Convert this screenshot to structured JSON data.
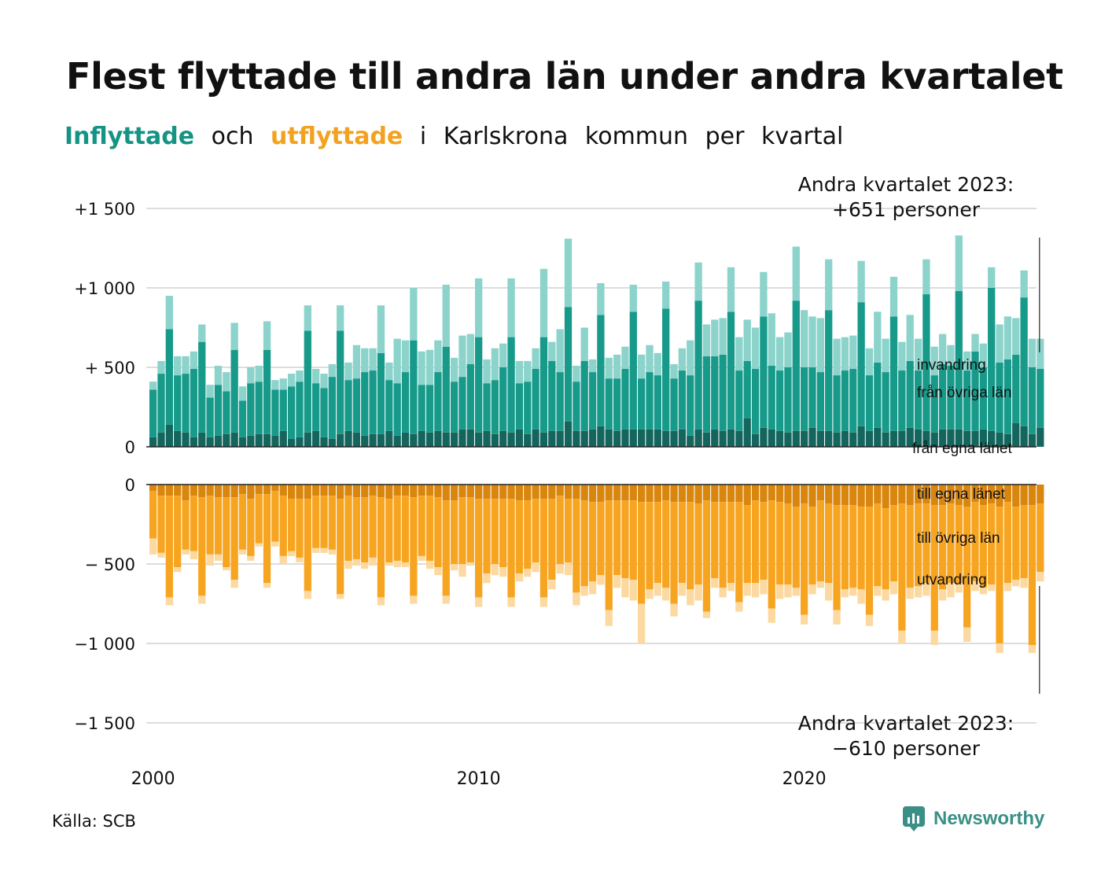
{
  "title": "Flest flyttade till andra län under andra kvartalet",
  "subtitle": {
    "word1": "Inflyttade",
    "word2": "och",
    "word3": "utflyttade",
    "word4": "i",
    "word5": "Karlskrona",
    "word6": "kommun",
    "word7": "per",
    "word8": "kvartal"
  },
  "source": "Källa: SCB",
  "logo_text": "Newsworthy",
  "colors": {
    "in_local": "#14655d",
    "in_other": "#179a8a",
    "in_abroad": "#8bd3cb",
    "out_local": "#d9860f",
    "out_other": "#f7a521",
    "out_abroad": "#fcd9a0",
    "grid": "#dddddd",
    "logo": "#3a8f86"
  },
  "chart_data": {
    "type": "bar",
    "stacked": true,
    "x_start": "2000 Q1",
    "x_ticks": [
      "2000",
      "2010",
      "2020"
    ],
    "y_ticks": [
      "+1 500",
      "+1 000",
      "+  500",
      "0",
      "0",
      "−  500",
      "−1 000",
      "−1 500"
    ],
    "in_ylim": [
      0,
      1500
    ],
    "out_ylim": [
      -1500,
      0
    ],
    "in_series_labels": [
      "invandring",
      "från övriga län",
      "från egna länet"
    ],
    "out_series_labels": [
      "till egna länet",
      "till övriga län",
      "utvandring"
    ],
    "annotation_in": {
      "line1": "Andra kvartalet 2023:",
      "line2": "+651 personer"
    },
    "annotation_out": {
      "line1": "Andra kvartalet 2023:",
      "line2": "−610 personer"
    },
    "inflow": {
      "from_own_county": [
        60,
        90,
        140,
        100,
        90,
        60,
        90,
        60,
        70,
        80,
        90,
        60,
        70,
        80,
        80,
        70,
        100,
        50,
        60,
        90,
        100,
        60,
        50,
        80,
        100,
        90,
        70,
        80,
        80,
        100,
        70,
        90,
        80,
        100,
        90,
        100,
        90,
        90,
        110,
        110,
        90,
        100,
        80,
        100,
        90,
        110,
        80,
        110,
        90,
        100,
        100,
        160,
        100,
        100,
        110,
        130,
        110,
        100,
        110,
        110,
        110,
        110,
        110,
        100,
        100,
        110,
        70,
        110,
        90,
        110,
        100,
        110,
        100,
        180,
        80,
        120,
        110,
        100,
        90,
        100,
        100,
        120,
        100,
        100,
        90,
        100,
        90,
        130,
        100,
        120,
        90,
        100,
        100,
        120,
        110,
        100,
        90,
        110,
        110,
        110,
        100,
        100,
        110,
        100,
        90,
        80,
        150,
        130,
        80,
        120
      ],
      "from_other_counties": [
        300,
        370,
        600,
        350,
        370,
        430,
        570,
        250,
        320,
        270,
        520,
        230,
        330,
        330,
        530,
        290,
        260,
        330,
        350,
        640,
        300,
        310,
        390,
        650,
        320,
        340,
        400,
        400,
        510,
        320,
        330,
        380,
        590,
        290,
        300,
        370,
        540,
        320,
        330,
        410,
        600,
        300,
        340,
        400,
        600,
        290,
        330,
        380,
        600,
        440,
        370,
        720,
        310,
        440,
        360,
        700,
        320,
        330,
        380,
        740,
        320,
        360,
        340,
        770,
        330,
        370,
        380,
        810,
        480,
        460,
        480,
        740,
        380,
        360,
        410,
        700,
        400,
        380,
        410,
        820,
        400,
        380,
        370,
        760,
        360,
        380,
        400,
        780,
        350,
        410,
        380,
        720,
        380,
        420,
        370,
        860,
        360,
        410,
        400,
        870,
        380,
        500,
        390,
        900,
        440,
        470,
        430,
        810,
        420,
        370
      ],
      "abroad": [
        50,
        80,
        210,
        120,
        110,
        110,
        110,
        80,
        120,
        120,
        170,
        90,
        100,
        100,
        180,
        60,
        70,
        80,
        70,
        160,
        90,
        90,
        80,
        160,
        110,
        210,
        150,
        140,
        300,
        110,
        280,
        200,
        330,
        210,
        220,
        200,
        390,
        150,
        260,
        190,
        370,
        150,
        200,
        150,
        370,
        140,
        130,
        130,
        430,
        120,
        270,
        430,
        100,
        210,
        80,
        200,
        130,
        150,
        140,
        170,
        150,
        170,
        140,
        170,
        90,
        140,
        220,
        240,
        200,
        230,
        230,
        280,
        210,
        260,
        260,
        280,
        330,
        210,
        220,
        340,
        360,
        320,
        340,
        320,
        230,
        210,
        210,
        260,
        170,
        320,
        210,
        250,
        180,
        290,
        200,
        220,
        180,
        190,
        130,
        350,
        120,
        110,
        150,
        130,
        240,
        270,
        230,
        170,
        180,
        190
      ]
    },
    "outflow": {
      "to_own_county": [
        -40,
        -70,
        -70,
        -70,
        -100,
        -70,
        -80,
        -70,
        -80,
        -80,
        -80,
        -60,
        -90,
        -60,
        -60,
        -40,
        -70,
        -90,
        -90,
        -90,
        -70,
        -70,
        -70,
        -90,
        -70,
        -80,
        -80,
        -70,
        -80,
        -90,
        -70,
        -70,
        -80,
        -70,
        -70,
        -80,
        -100,
        -100,
        -80,
        -80,
        -90,
        -90,
        -90,
        -90,
        -90,
        -100,
        -100,
        -90,
        -90,
        -90,
        -70,
        -90,
        -90,
        -100,
        -110,
        -110,
        -100,
        -100,
        -100,
        -100,
        -110,
        -110,
        -110,
        -100,
        -110,
        -110,
        -110,
        -120,
        -100,
        -110,
        -110,
        -110,
        -110,
        -130,
        -100,
        -110,
        -100,
        -110,
        -120,
        -140,
        -120,
        -140,
        -100,
        -120,
        -130,
        -130,
        -130,
        -140,
        -140,
        -120,
        -150,
        -130,
        -120,
        -130,
        -120,
        -120,
        -130,
        -130,
        -120,
        -130,
        -140,
        -110,
        -130,
        -120,
        -140,
        -110,
        -140,
        -130,
        -130,
        -120
      ],
      "to_other_counties": [
        -300,
        -360,
        -640,
        -450,
        -310,
        -350,
        -620,
        -370,
        -360,
        -440,
        -520,
        -350,
        -360,
        -310,
        -560,
        -320,
        -380,
        -330,
        -370,
        -580,
        -330,
        -330,
        -340,
        -600,
        -410,
        -390,
        -410,
        -390,
        -630,
        -400,
        -410,
        -420,
        -620,
        -380,
        -410,
        -440,
        -600,
        -400,
        -420,
        -410,
        -620,
        -470,
        -410,
        -430,
        -620,
        -460,
        -430,
        -400,
        -620,
        -510,
        -430,
        -400,
        -590,
        -540,
        -500,
        -460,
        -690,
        -470,
        -490,
        -500,
        -640,
        -550,
        -510,
        -550,
        -640,
        -510,
        -550,
        -510,
        -700,
        -480,
        -540,
        -510,
        -630,
        -490,
        -520,
        -490,
        -680,
        -520,
        -510,
        -510,
        -700,
        -490,
        -510,
        -500,
        -660,
        -530,
        -520,
        -520,
        -680,
        -520,
        -510,
        -480,
        -800,
        -520,
        -520,
        -500,
        -790,
        -530,
        -500,
        -490,
        -760,
        -500,
        -520,
        -510,
        -860,
        -510,
        -460,
        -460,
        -880,
        -430
      ],
      "abroad": [
        -100,
        -30,
        -50,
        -30,
        -30,
        -50,
        -50,
        -70,
        -40,
        -20,
        -50,
        -30,
        -30,
        -20,
        -30,
        -30,
        -50,
        -30,
        -30,
        -50,
        -30,
        -30,
        -30,
        -30,
        -50,
        -40,
        -40,
        -50,
        -50,
        -20,
        -40,
        -30,
        -50,
        -30,
        -50,
        -50,
        -50,
        -40,
        -80,
        -20,
        -60,
        -60,
        -70,
        -60,
        -60,
        -50,
        -50,
        -60,
        -60,
        -60,
        -60,
        -80,
        -80,
        -60,
        -80,
        -60,
        -100,
        -80,
        -120,
        -130,
        -250,
        -60,
        -80,
        -80,
        -80,
        -80,
        -100,
        -100,
        -40,
        -60,
        -60,
        -50,
        -60,
        -80,
        -90,
        -90,
        -90,
        -90,
        -80,
        -50,
        -60,
        -60,
        -40,
        -110,
        -90,
        -50,
        -50,
        -90,
        -70,
        -60,
        -70,
        -80,
        -80,
        -70,
        -70,
        -80,
        -90,
        -70,
        -90,
        -60,
        -90,
        -60,
        -40,
        -40,
        -60,
        -50,
        -40,
        -60,
        -50,
        -60
      ]
    }
  }
}
